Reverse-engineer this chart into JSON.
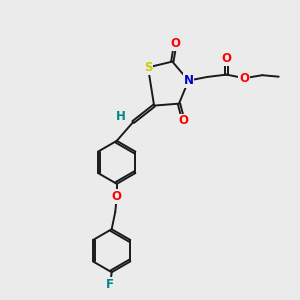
{
  "bg_color": "#ebebeb",
  "bond_color": "#1a1a1a",
  "bond_width": 1.4,
  "atom_colors": {
    "O": "#ff0000",
    "N": "#0000cc",
    "S": "#cccc00",
    "F": "#008888",
    "H": "#008888",
    "C": "#1a1a1a"
  },
  "font_size": 8.5,
  "fig_width": 3.0,
  "fig_height": 3.0,
  "dpi": 100
}
